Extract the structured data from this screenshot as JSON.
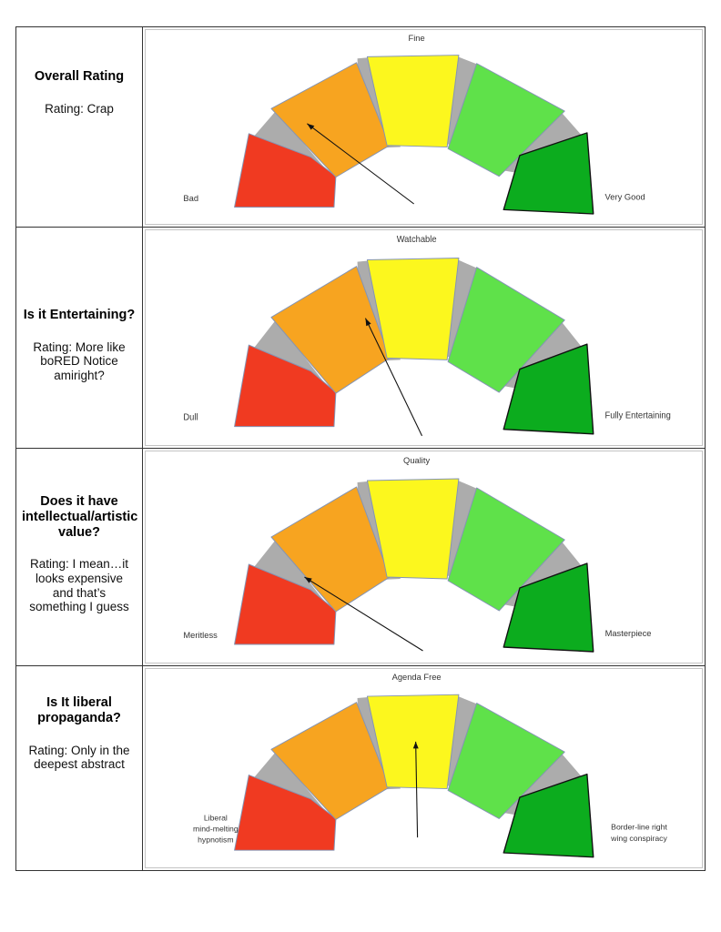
{
  "document_title": "Movie review rating gauges",
  "colors": {
    "red": "#F03A21",
    "orange": "#F7A420",
    "yellow": "#FCF71E",
    "light_green": "#5FE14A",
    "dark_green": "#0CAC1E",
    "arc_gray": "#ACACAC",
    "segment_stroke": "#8494B4",
    "dark_green_stroke": "#111111",
    "needle": "#111111",
    "label_text": "#333333",
    "table_border": "#333333"
  },
  "rows": [
    {
      "title": "Overall Rating",
      "rating": "Rating: Crap",
      "gauge": {
        "left_label": "Bad",
        "top_label": "Fine",
        "right_label": "Very Good",
        "needle": {
          "tail": [
            299,
            208
          ],
          "tip": [
            180,
            112
          ]
        }
      }
    },
    {
      "title": "Is it Entertaining?",
      "rating": "Rating: More like\nboRED Notice\namiright?",
      "gauge": {
        "left_label": "Dull",
        "top_label": "Watchable",
        "right_label": "Fully Entertaining",
        "needle": {
          "tail": [
            308,
            222
          ],
          "tip": [
            245,
            95
          ]
        }
      }
    },
    {
      "title": "Does it have\nintellectual/artistic\nvalue?",
      "rating": "Rating: I mean…it\nlooks expensive\nand that’s\nsomething I guess",
      "gauge": {
        "left_label": "Meritless",
        "top_label": "Quality",
        "right_label": "Masterpiece",
        "needle": {
          "tail": [
            309,
            219
          ],
          "tip": [
            177,
            138
          ]
        }
      }
    },
    {
      "title": "Is It liberal\npropaganda?",
      "rating": "Rating: Only in the\ndeepest abstract",
      "gauge": {
        "left_label": "Liberal\nmind-melting\nhypnotism",
        "top_label": "Agenda Free",
        "right_label": "Border-line right\nwing conspiracy",
        "needle": {
          "tail": [
            303,
            197
          ],
          "tip": [
            301,
            85
          ]
        }
      }
    }
  ],
  "chart_data": [
    {
      "type": "gauge",
      "question": "Overall Rating",
      "rating_text": "Rating: Crap",
      "scale_labels": {
        "min": "Bad",
        "mid": "Fine",
        "max": "Very Good"
      },
      "segments": [
        "red",
        "orange",
        "yellow",
        "light-green",
        "green"
      ],
      "needle_angle_deg": -51,
      "needle_points_at": "orange (low)"
    },
    {
      "type": "gauge",
      "question": "Is it Entertaining?",
      "rating_text": "Rating: More like boRED Notice amiright?",
      "scale_labels": {
        "min": "Dull",
        "mid": "Watchable",
        "max": "Fully Entertaining"
      },
      "segments": [
        "red",
        "orange",
        "yellow",
        "light-green",
        "green"
      ],
      "needle_angle_deg": -26,
      "needle_points_at": "orange near yellow boundary (low-mid)"
    },
    {
      "type": "gauge",
      "question": "Does it have intellectual/artistic value?",
      "rating_text": "Rating: I mean…it looks expensive and that’s something I guess",
      "scale_labels": {
        "min": "Meritless",
        "mid": "Quality",
        "max": "Masterpiece"
      },
      "segments": [
        "red",
        "orange",
        "yellow",
        "light-green",
        "green"
      ],
      "needle_angle_deg": -58,
      "needle_points_at": "red/orange boundary (very low)"
    },
    {
      "type": "gauge",
      "question": "Is It liberal propaganda?",
      "rating_text": "Rating: Only in the deepest abstract",
      "scale_labels": {
        "min": "Liberal mind-melting hypnotism",
        "mid": "Agenda Free",
        "max": "Border-line right wing conspiracy"
      },
      "segments": [
        "red",
        "orange",
        "yellow",
        "light-green",
        "green"
      ],
      "needle_angle_deg": -1,
      "needle_points_at": "yellow center (neutral)"
    }
  ]
}
